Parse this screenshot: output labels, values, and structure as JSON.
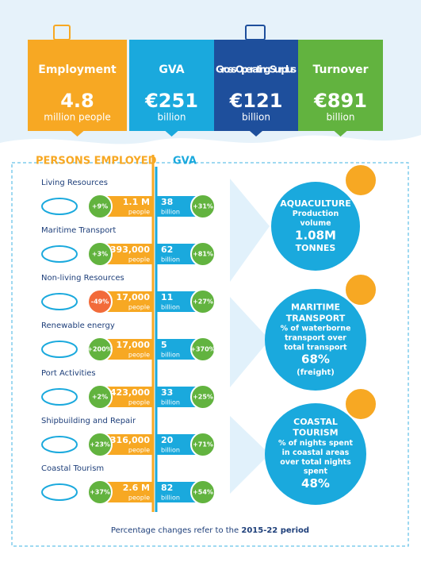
{
  "header": {
    "cards": [
      {
        "title": "Employment",
        "value": "4.8",
        "unit": "million people"
      },
      {
        "title": "GVA",
        "value": "€251",
        "unit": "billion"
      },
      {
        "title": "Gross Operating Surplus",
        "value": "€121",
        "unit": "billion"
      },
      {
        "title": "Turnover",
        "value": "€891",
        "unit": "billion"
      }
    ]
  },
  "columns": {
    "employed": "PERSONS EMPLOYED",
    "gva": "GVA"
  },
  "sectors": [
    {
      "name": "Living Resources",
      "employment_change": "+9%",
      "employment": "1.1 M",
      "employment_unit": "people",
      "gva": "38",
      "gva_unit": "billion",
      "gva_change": "+31%"
    },
    {
      "name": "Maritime Transport",
      "employment_change": "+3%",
      "employment": "393,000",
      "employment_unit": "people",
      "gva": "62",
      "gva_unit": "billion",
      "gva_change": "+81%"
    },
    {
      "name": "Non-living Resources",
      "employment_change": "-49%",
      "employment": "17,000",
      "employment_unit": "people",
      "gva": "11",
      "gva_unit": "billion",
      "gva_change": "+27%"
    },
    {
      "name": "Renewable energy",
      "employment_change": "+200%",
      "employment": "17,000",
      "employment_unit": "people",
      "gva": "5",
      "gva_unit": "billion",
      "gva_change": "+370%"
    },
    {
      "name": "Port Activities",
      "employment_change": "+2%",
      "employment": "423,000",
      "employment_unit": "people",
      "gva": "33",
      "gva_unit": "billion",
      "gva_change": "+25%"
    },
    {
      "name": "Shipbuilding and Repair",
      "employment_change": "+23%",
      "employment": "316,000",
      "employment_unit": "people",
      "gva": "20",
      "gva_unit": "billion",
      "gva_change": "+71%"
    },
    {
      "name": "Coastal Tourism",
      "employment_change": "+37%",
      "employment": "2.6 M",
      "employment_unit": "people",
      "gva": "82",
      "gva_unit": "billion",
      "gva_change": "+54%"
    }
  ],
  "callouts": [
    {
      "title": [
        "AQUACULTURE"
      ],
      "description": [
        "Production",
        "volume"
      ],
      "value": "1.08M",
      "unit": "TONNES"
    },
    {
      "title": [
        "MARITIME",
        "TRANSPORT"
      ],
      "description": [
        "% of waterborne",
        "transport over",
        "total transport"
      ],
      "value": "68%",
      "unit": "(freight)"
    },
    {
      "title": [
        "COASTAL",
        "TOURISM"
      ],
      "description": [
        "% of nights spent",
        "in coastal areas",
        "over total nights",
        "spent"
      ],
      "value": "48%"
    }
  ],
  "footnote": {
    "text": "Percentage changes refer to the ",
    "period": "2015-22 period"
  }
}
